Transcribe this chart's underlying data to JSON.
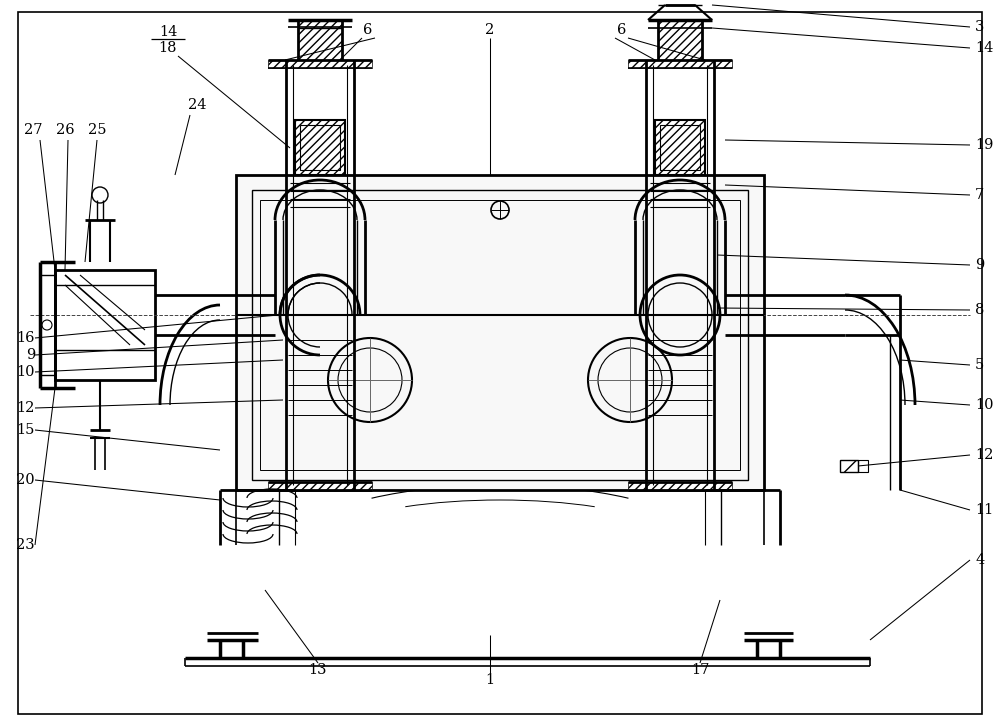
{
  "bg_color": "#ffffff",
  "line_color": "#000000",
  "figsize": [
    10.0,
    7.26
  ],
  "dpi": 100
}
